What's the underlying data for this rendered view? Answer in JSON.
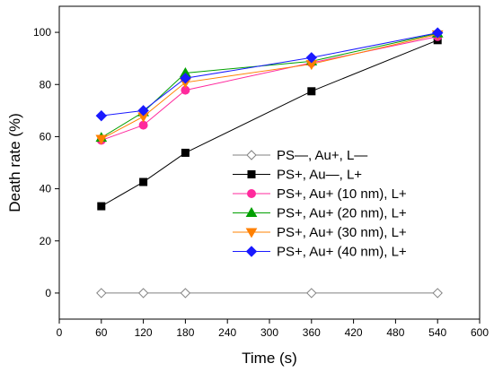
{
  "chart_data": {
    "type": "line",
    "title": "",
    "xlabel": "Time (s)",
    "ylabel": "Death rate (%)",
    "xlim": [
      0,
      600
    ],
    "ylim": [
      -10,
      110
    ],
    "xticks": [
      0,
      60,
      120,
      180,
      240,
      300,
      360,
      420,
      480,
      540,
      600
    ],
    "yticks": [
      0,
      20,
      40,
      60,
      80,
      100
    ],
    "grid": false,
    "legend_position": "center-right",
    "x": [
      60,
      120,
      180,
      360,
      540
    ],
    "series": [
      {
        "name": "PS—, Au+,  L—",
        "values": [
          0,
          0,
          0,
          0,
          0
        ],
        "color": "#808080",
        "marker": "diamond-open"
      },
      {
        "name": "PS+, Au—,  L+",
        "values": [
          33.3,
          42.6,
          53.8,
          77.4,
          97.0
        ],
        "color": "#000000",
        "marker": "square"
      },
      {
        "name": "PS+, Au+ (10 nm),  L+",
        "values": [
          58.6,
          64.4,
          77.8,
          88.3,
          98.4
        ],
        "color": "#ff2a9d",
        "marker": "circle"
      },
      {
        "name": "PS+, Au+ (20 nm),  L+",
        "values": [
          59.6,
          69.4,
          84.4,
          88.9,
          99.6
        ],
        "color": "#00a000",
        "marker": "triangle-up"
      },
      {
        "name": "PS+, Au+ (30 nm),  L+",
        "values": [
          59.1,
          67.7,
          80.8,
          87.8,
          99.2
        ],
        "color": "#ff8000",
        "marker": "triangle-down"
      },
      {
        "name": "PS+, Au+ (40 nm),  L+",
        "values": [
          68.0,
          70.0,
          82.4,
          90.3,
          99.8
        ],
        "color": "#1a1aff",
        "marker": "diamond"
      }
    ]
  }
}
